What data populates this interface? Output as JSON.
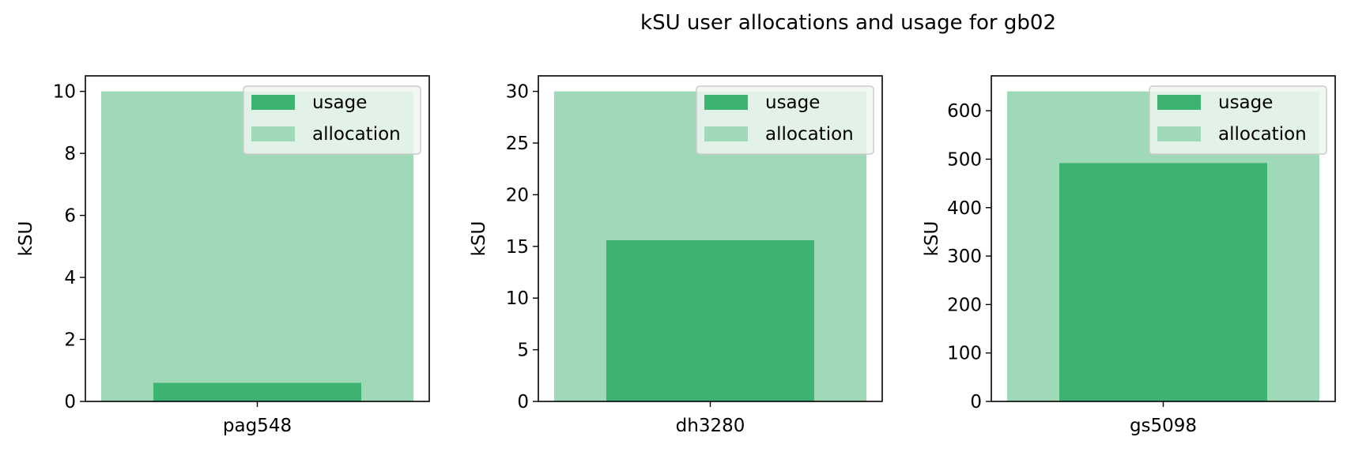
{
  "title": "kSU user allocations and usage for gb02",
  "colors": {
    "usage": "#3cb371",
    "allocation": "#9fd9b8",
    "legend_bg": "#eef6f1"
  },
  "legend": {
    "usage_label": "usage",
    "allocation_label": "allocation",
    "placement": "upper right"
  },
  "chart_data": [
    {
      "type": "bar",
      "categories": [
        "pag548"
      ],
      "series": [
        {
          "name": "usage",
          "values": [
            0.6
          ]
        },
        {
          "name": "allocation",
          "values": [
            10
          ]
        }
      ],
      "ylabel": "kSU",
      "ylim": [
        0,
        10.5
      ],
      "yticks": [
        0,
        2,
        4,
        6,
        8,
        10
      ],
      "grid": false
    },
    {
      "type": "bar",
      "categories": [
        "dh3280"
      ],
      "series": [
        {
          "name": "usage",
          "values": [
            15.6
          ]
        },
        {
          "name": "allocation",
          "values": [
            30
          ]
        }
      ],
      "ylabel": "kSU",
      "ylim": [
        0,
        31.5
      ],
      "yticks": [
        0,
        5,
        10,
        15,
        20,
        25,
        30
      ],
      "grid": false
    },
    {
      "type": "bar",
      "categories": [
        "gs5098"
      ],
      "series": [
        {
          "name": "usage",
          "values": [
            492
          ]
        },
        {
          "name": "allocation",
          "values": [
            640
          ]
        }
      ],
      "ylabel": "kSU",
      "ylim": [
        0,
        672
      ],
      "yticks": [
        0,
        100,
        200,
        300,
        400,
        500,
        600
      ],
      "grid": false
    }
  ]
}
